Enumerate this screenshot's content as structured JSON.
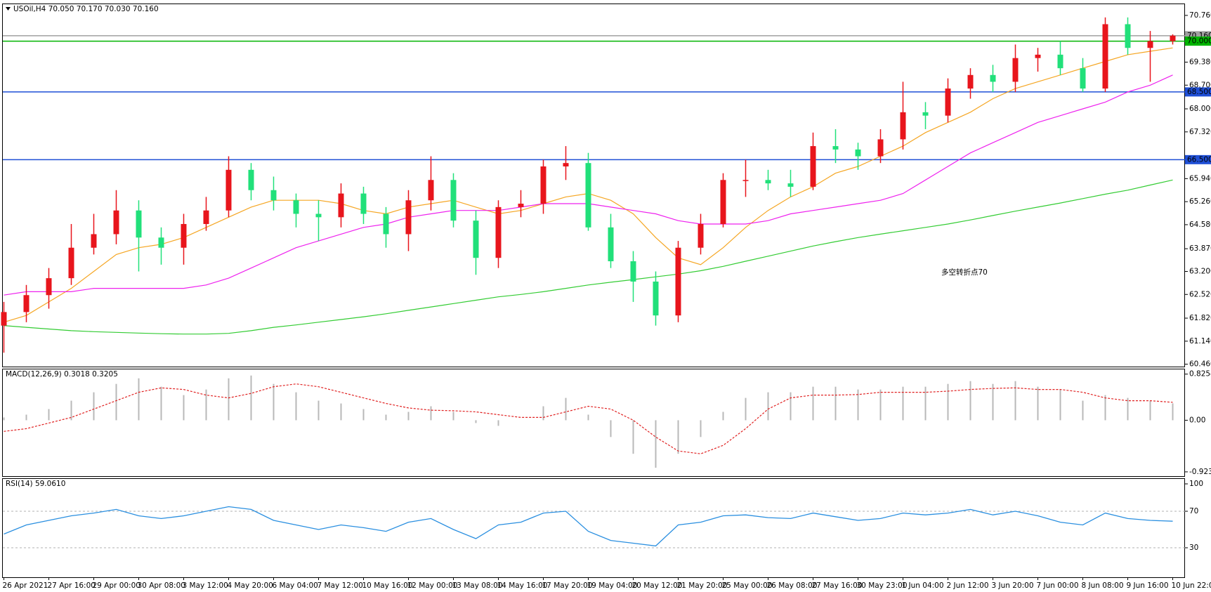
{
  "chart_data": [
    {
      "type": "candlestick",
      "title": "USOil,H4 70.050 70.170 70.030 70.160",
      "annotation": "多空转折点70",
      "annotation_color": "#e8151c",
      "up_color": "#e8151c",
      "down_color": "#21e07a",
      "categories": [
        "26 Apr 2021",
        null,
        "27 Apr 16:00",
        null,
        "29 Apr 00:00",
        null,
        "30 Apr 08:00",
        null,
        "3 May 12:00",
        null,
        "4 May 20:00",
        null,
        "6 May 04:00",
        null,
        "7 May 12:00",
        null,
        "10 May 16:00",
        null,
        "12 May 00:00",
        null,
        "13 May 08:00",
        null,
        "14 May 16:00",
        null,
        "17 May 20:00",
        null,
        "19 May 04:00",
        null,
        "20 May 12:00",
        null,
        "21 May 20:00",
        null,
        "25 May 00:00",
        null,
        "26 May 08:00",
        null,
        "27 May 16:00",
        null,
        "30 May 23:00",
        null,
        "1 Jun 04:00",
        null,
        "2 Jun 12:00",
        null,
        "3 Jun 20:00",
        null,
        "7 Jun 00:00",
        null,
        "8 Jun 08:00",
        null,
        "9 Jun 16:00",
        null,
        "10 Jun 22:00"
      ],
      "open": [
        61.6,
        62.0,
        62.5,
        63.0,
        63.9,
        64.3,
        65.0,
        64.2,
        63.9,
        64.6,
        65.0,
        66.2,
        65.6,
        65.3,
        64.9,
        64.8,
        65.5,
        64.9,
        64.3,
        65.3,
        65.9,
        64.7,
        63.6,
        65.1,
        65.2,
        66.3,
        66.4,
        64.5,
        63.5,
        62.9,
        61.9,
        63.9,
        64.6,
        65.9,
        65.9,
        65.8,
        65.7,
        66.9,
        66.8,
        66.6,
        67.1,
        67.9,
        67.8,
        68.6,
        69.0,
        68.8,
        69.5,
        69.6,
        69.2,
        68.6,
        70.5,
        69.8,
        70.0
      ],
      "high": [
        62.3,
        62.8,
        63.3,
        64.6,
        64.9,
        65.6,
        65.3,
        64.5,
        64.9,
        65.4,
        66.6,
        66.4,
        66.0,
        65.5,
        65.3,
        65.8,
        65.7,
        65.1,
        65.6,
        66.6,
        66.1,
        65.0,
        65.3,
        65.6,
        66.5,
        66.9,
        66.7,
        64.9,
        63.8,
        63.2,
        64.1,
        64.9,
        66.1,
        66.5,
        66.2,
        66.2,
        67.3,
        67.4,
        67.0,
        67.4,
        68.8,
        68.2,
        68.9,
        69.2,
        69.3,
        69.9,
        69.8,
        70.0,
        69.5,
        70.7,
        70.7,
        70.3,
        70.2
      ],
      "low": [
        60.8,
        61.7,
        62.1,
        62.8,
        63.7,
        64.0,
        63.2,
        63.4,
        63.4,
        64.4,
        64.8,
        65.3,
        65.0,
        64.5,
        64.1,
        64.5,
        64.6,
        63.9,
        63.8,
        65.0,
        64.5,
        63.1,
        63.3,
        64.8,
        64.9,
        65.9,
        64.4,
        63.3,
        62.3,
        61.6,
        61.7,
        63.7,
        64.5,
        65.4,
        65.6,
        65.4,
        65.6,
        66.4,
        66.2,
        66.4,
        66.8,
        67.4,
        67.6,
        68.3,
        68.5,
        68.5,
        69.1,
        69.0,
        68.5,
        68.5,
        69.6,
        68.8,
        69.9
      ],
      "close": [
        62.0,
        62.5,
        63.0,
        63.9,
        64.3,
        65.0,
        64.2,
        63.9,
        64.6,
        65.0,
        66.2,
        65.6,
        65.3,
        64.9,
        64.8,
        65.5,
        64.9,
        64.3,
        65.3,
        65.9,
        64.7,
        63.6,
        65.1,
        65.2,
        66.3,
        66.4,
        64.5,
        63.5,
        62.9,
        61.9,
        63.9,
        64.6,
        65.9,
        65.9,
        65.8,
        65.7,
        66.9,
        66.8,
        66.6,
        67.1,
        67.9,
        67.8,
        68.6,
        69.0,
        68.8,
        69.5,
        69.6,
        69.2,
        68.6,
        70.5,
        69.8,
        70.0,
        70.16
      ],
      "overlays": [
        {
          "color": "#f5a623",
          "values": [
            61.7,
            61.9,
            62.3,
            62.7,
            63.2,
            63.7,
            63.9,
            64.0,
            64.2,
            64.5,
            64.8,
            65.1,
            65.3,
            65.3,
            65.3,
            65.2,
            65.0,
            64.9,
            65.1,
            65.2,
            65.3,
            65.1,
            64.9,
            65.0,
            65.2,
            65.4,
            65.5,
            65.3,
            64.9,
            64.2,
            63.6,
            63.4,
            63.9,
            64.5,
            65.0,
            65.4,
            65.7,
            66.1,
            66.3,
            66.6,
            66.9,
            67.3,
            67.6,
            67.9,
            68.3,
            68.6,
            68.8,
            69.0,
            69.2,
            69.4,
            69.6,
            69.7,
            69.8
          ]
        },
        {
          "color": "#ee22ee",
          "values": [
            62.5,
            62.6,
            62.6,
            62.6,
            62.7,
            62.7,
            62.7,
            62.7,
            62.7,
            62.8,
            63.0,
            63.3,
            63.6,
            63.9,
            64.1,
            64.3,
            64.5,
            64.6,
            64.8,
            64.9,
            65.0,
            65.0,
            65.0,
            65.1,
            65.2,
            65.2,
            65.2,
            65.1,
            65.0,
            64.9,
            64.7,
            64.6,
            64.6,
            64.6,
            64.7,
            64.9,
            65.0,
            65.1,
            65.2,
            65.3,
            65.5,
            65.9,
            66.3,
            66.7,
            67.0,
            67.3,
            67.6,
            67.8,
            68.0,
            68.2,
            68.5,
            68.7,
            69.0
          ]
        },
        {
          "color": "#33cc33",
          "values": [
            61.6,
            61.55,
            61.5,
            61.45,
            61.42,
            61.4,
            61.38,
            61.36,
            61.35,
            61.35,
            61.37,
            61.45,
            61.55,
            61.62,
            61.7,
            61.78,
            61.86,
            61.95,
            62.05,
            62.15,
            62.25,
            62.35,
            62.45,
            62.52,
            62.6,
            62.7,
            62.8,
            62.88,
            62.96,
            63.04,
            63.12,
            63.22,
            63.35,
            63.5,
            63.65,
            63.8,
            63.95,
            64.08,
            64.2,
            64.3,
            64.4,
            64.5,
            64.6,
            64.72,
            64.85,
            64.98,
            65.1,
            65.22,
            65.35,
            65.48,
            65.6,
            65.75,
            65.9
          ]
        }
      ],
      "hlines": [
        {
          "value": 70.16,
          "label": "70.160",
          "color": "#a0a0a0"
        },
        {
          "value": 70.0,
          "label": "70.000",
          "color": "#00b400"
        },
        {
          "value": 68.5,
          "label": "68.500",
          "color": "#1f4fd6"
        },
        {
          "value": 66.5,
          "label": "66.500",
          "color": "#1f4fd6"
        }
      ],
      "ylim": [
        60.39,
        71.09
      ],
      "yticks": [
        {
          "value": 70.76,
          "label": "70.760"
        },
        {
          "value": 69.38,
          "label": "69.380"
        },
        {
          "value": 68.7,
          "label": "68.700"
        },
        {
          "value": 68.0,
          "label": "68.000"
        },
        {
          "value": 67.32,
          "label": "67.320"
        },
        {
          "value": 65.94,
          "label": "65.940"
        },
        {
          "value": 65.26,
          "label": "65.260"
        },
        {
          "value": 64.58,
          "label": "64.580"
        },
        {
          "value": 63.87,
          "label": "63.870"
        },
        {
          "value": 63.2,
          "label": "63.200"
        },
        {
          "value": 62.52,
          "label": "62.520"
        },
        {
          "value": 61.82,
          "label": "61.820"
        },
        {
          "value": 61.14,
          "label": "61.140"
        },
        {
          "value": 60.46,
          "label": "60.460"
        }
      ]
    },
    {
      "type": "macd",
      "title": "MACD(12,26,9) 0.3018 0.3205",
      "series": [
        {
          "kind": "bar",
          "color": "#b8b8b8",
          "values": [
            0.05,
            0.1,
            0.2,
            0.35,
            0.5,
            0.65,
            0.75,
            0.6,
            0.45,
            0.55,
            0.75,
            0.8,
            0.65,
            0.5,
            0.35,
            0.3,
            0.2,
            0.1,
            0.15,
            0.25,
            0.15,
            -0.05,
            -0.1,
            0.0,
            0.25,
            0.4,
            0.1,
            -0.3,
            -0.6,
            -0.85,
            -0.6,
            -0.3,
            0.15,
            0.4,
            0.5,
            0.5,
            0.6,
            0.6,
            0.55,
            0.55,
            0.6,
            0.6,
            0.65,
            0.7,
            0.65,
            0.7,
            0.6,
            0.55,
            0.35,
            0.45,
            0.4,
            0.35,
            0.3018
          ]
        },
        {
          "kind": "line",
          "color": "#e02020",
          "dashed": true,
          "values": [
            -0.2,
            -0.15,
            -0.05,
            0.05,
            0.2,
            0.35,
            0.5,
            0.58,
            0.55,
            0.45,
            0.4,
            0.48,
            0.6,
            0.65,
            0.6,
            0.5,
            0.4,
            0.3,
            0.22,
            0.18,
            0.17,
            0.15,
            0.1,
            0.05,
            0.05,
            0.15,
            0.25,
            0.2,
            0.0,
            -0.3,
            -0.55,
            -0.6,
            -0.45,
            -0.15,
            0.2,
            0.4,
            0.45,
            0.45,
            0.46,
            0.5,
            0.5,
            0.5,
            0.52,
            0.55,
            0.57,
            0.58,
            0.55,
            0.55,
            0.5,
            0.4,
            0.35,
            0.35,
            0.3205
          ]
        }
      ],
      "ylim": [
        -1.0,
        0.91
      ],
      "yticks": [
        0.8254,
        {
          "value": 0,
          "label": "0.00"
        },
        -0.9234
      ]
    },
    {
      "type": "line",
      "title": "RSI(14) 59.0610",
      "series": [
        {
          "color": "#2a8fe0",
          "values": [
            45,
            55,
            60,
            65,
            68,
            72,
            65,
            62,
            65,
            70,
            75,
            72,
            60,
            55,
            50,
            55,
            52,
            48,
            58,
            62,
            50,
            40,
            55,
            58,
            68,
            70,
            48,
            38,
            35,
            32,
            55,
            58,
            65,
            66,
            63,
            62,
            68,
            64,
            60,
            62,
            68,
            66,
            68,
            72,
            66,
            70,
            65,
            58,
            55,
            68,
            62,
            60,
            59.061
          ]
        }
      ],
      "ylim": [
        -2.3,
        105.4
      ],
      "yticks": [
        100,
        70,
        30
      ],
      "levels_dashed": true
    }
  ]
}
